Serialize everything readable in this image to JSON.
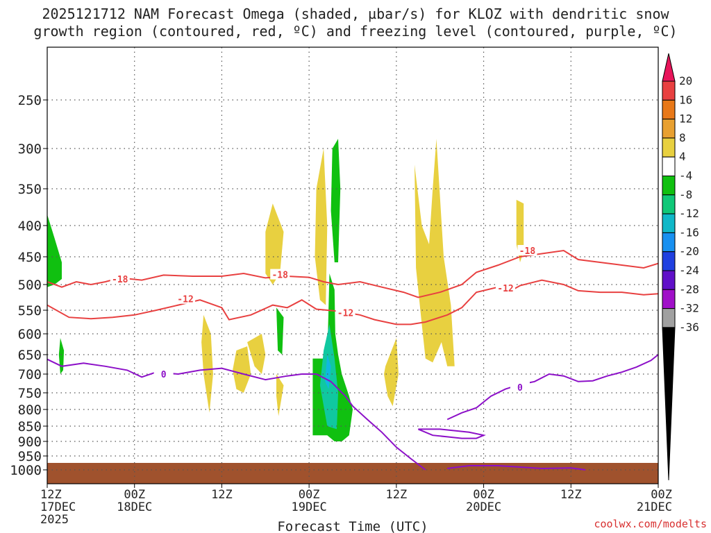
{
  "chart_data": {
    "type": "time-height cross-section",
    "title_line1": "2025121712 NAM Forecast Omega (shaded, µbar/s) for KLOZ with dendritic snow",
    "title_line2": "growth region (contoured, red, ºC) and freezing level (contoured, purple, ºC)",
    "xlabel": "Forecast Time (UTC)",
    "x_ticks": [
      {
        "hour": 0,
        "label1": "12Z",
        "label2": "17DEC",
        "label3": "2025"
      },
      {
        "hour": 12,
        "label1": "00Z",
        "label2": "18DEC"
      },
      {
        "hour": 24,
        "label1": "12Z"
      },
      {
        "hour": 36,
        "label1": "00Z",
        "label2": "19DEC"
      },
      {
        "hour": 48,
        "label1": "12Z"
      },
      {
        "hour": 60,
        "label1": "00Z",
        "label2": "20DEC"
      },
      {
        "hour": 72,
        "label1": "12Z"
      },
      {
        "hour": 84,
        "label1": "00Z",
        "label2": "21DEC"
      }
    ],
    "y_ticks_hpa": [
      250,
      300,
      350,
      400,
      450,
      500,
      550,
      600,
      650,
      700,
      750,
      800,
      850,
      900,
      950,
      1000
    ],
    "x_range_hours": [
      0,
      84
    ],
    "y_range_hpa": [
      200,
      1040
    ],
    "colorbar": {
      "labels": [
        "20",
        "16",
        "12",
        "8",
        "4",
        "-4",
        "-8",
        "-12",
        "-16",
        "-20",
        "-24",
        "-28",
        "-32",
        "-36"
      ],
      "colors": [
        "#e8145a",
        "#e84040",
        "#e87818",
        "#e8a030",
        "#e8d040",
        "#ffffff",
        "#10c010",
        "#10c878",
        "#10b8c8",
        "#1890f0",
        "#2040e0",
        "#6010c8",
        "#a010c8",
        "#a0a0a0",
        "#000000"
      ]
    },
    "contours": [
      {
        "name": "-18 C isotherm",
        "color": "#e84040",
        "label": "-18",
        "points": [
          [
            0,
            495
          ],
          [
            2,
            505
          ],
          [
            4,
            495
          ],
          [
            6,
            500
          ],
          [
            8,
            495
          ],
          [
            10,
            488
          ],
          [
            13,
            492
          ],
          [
            16,
            483
          ],
          [
            20,
            485
          ],
          [
            24,
            485
          ],
          [
            27,
            480
          ],
          [
            30,
            488
          ],
          [
            33,
            485
          ],
          [
            36,
            487
          ],
          [
            38,
            495
          ],
          [
            40,
            500
          ],
          [
            43,
            495
          ],
          [
            46,
            505
          ],
          [
            49,
            515
          ],
          [
            51,
            525
          ],
          [
            54,
            515
          ],
          [
            57,
            500
          ],
          [
            59,
            478
          ],
          [
            62,
            465
          ],
          [
            65,
            450
          ],
          [
            68,
            445
          ],
          [
            71,
            440
          ],
          [
            73,
            455
          ],
          [
            76,
            460
          ],
          [
            79,
            465
          ],
          [
            82,
            470
          ],
          [
            84,
            462
          ]
        ],
        "label_positions": [
          [
            10,
            490
          ],
          [
            32,
            482
          ],
          [
            66,
            440
          ]
        ]
      },
      {
        "name": "-12 C isotherm",
        "color": "#e84040",
        "label": "-12",
        "points": [
          [
            0,
            540
          ],
          [
            3,
            565
          ],
          [
            6,
            568
          ],
          [
            9,
            565
          ],
          [
            12,
            560
          ],
          [
            15,
            550
          ],
          [
            18,
            540
          ],
          [
            21,
            530
          ],
          [
            24,
            545
          ],
          [
            25,
            570
          ],
          [
            28,
            560
          ],
          [
            31,
            540
          ],
          [
            33,
            545
          ],
          [
            35,
            530
          ],
          [
            37,
            548
          ],
          [
            40,
            552
          ],
          [
            43,
            560
          ],
          [
            45,
            570
          ],
          [
            48,
            580
          ],
          [
            50,
            580
          ],
          [
            52,
            575
          ],
          [
            55,
            560
          ],
          [
            57,
            545
          ],
          [
            59,
            515
          ],
          [
            62,
            505
          ],
          [
            64,
            510
          ],
          [
            65,
            502
          ],
          [
            68,
            492
          ],
          [
            71,
            500
          ],
          [
            73,
            512
          ],
          [
            76,
            515
          ],
          [
            79,
            515
          ],
          [
            82,
            520
          ],
          [
            84,
            518
          ]
        ],
        "label_positions": [
          [
            19,
            528
          ],
          [
            41,
            555
          ],
          [
            63,
            507
          ]
        ]
      },
      {
        "name": "0 C freezing level",
        "color": "#8c10c8",
        "label": "0",
        "points": [
          [
            0,
            662
          ],
          [
            2,
            680
          ],
          [
            5,
            672
          ],
          [
            8,
            680
          ],
          [
            11,
            690
          ],
          [
            13,
            708
          ],
          [
            15,
            695
          ],
          [
            18,
            700
          ],
          [
            21,
            690
          ],
          [
            24,
            685
          ],
          [
            27,
            700
          ],
          [
            30,
            715
          ],
          [
            33,
            705
          ],
          [
            35,
            700
          ],
          [
            37,
            700
          ],
          [
            39,
            720
          ],
          [
            41,
            760
          ],
          [
            42,
            790
          ],
          [
            44,
            830
          ],
          [
            46,
            870
          ],
          [
            48,
            920
          ],
          [
            50,
            960
          ],
          [
            52,
            1000
          ]
        ],
        "label_positions": [
          [
            16,
            700
          ]
        ]
      },
      {
        "name": "0 C freezing level (right segment)",
        "color": "#8c10c8",
        "label": "0",
        "points": [
          [
            55,
            830
          ],
          [
            57,
            810
          ],
          [
            59,
            795
          ],
          [
            61,
            760
          ],
          [
            63,
            740
          ],
          [
            65,
            728
          ],
          [
            67,
            720
          ],
          [
            69,
            700
          ],
          [
            71,
            705
          ],
          [
            73,
            720
          ],
          [
            75,
            718
          ],
          [
            77,
            705
          ],
          [
            79,
            695
          ],
          [
            81,
            682
          ],
          [
            83,
            665
          ],
          [
            84,
            650
          ]
        ],
        "label_positions": [
          [
            65,
            735
          ]
        ]
      },
      {
        "name": "0 C lower loop",
        "color": "#8c10c8",
        "points": [
          [
            51,
            860
          ],
          [
            53,
            880
          ],
          [
            55,
            885
          ],
          [
            57,
            890
          ],
          [
            59,
            890
          ],
          [
            60,
            880
          ],
          [
            58,
            870
          ],
          [
            54,
            860
          ],
          [
            51,
            860
          ]
        ],
        "label_positions": [
          [
            54,
            885
          ]
        ]
      },
      {
        "name": "0 C surface segment",
        "color": "#8c10c8",
        "points": [
          [
            55,
            995
          ],
          [
            58,
            985
          ],
          [
            62,
            985
          ],
          [
            65,
            990
          ],
          [
            68,
            995
          ],
          [
            72,
            993
          ],
          [
            74,
            1000
          ]
        ],
        "label_positions": []
      }
    ],
    "shaded_regions": [
      {
        "color": "#10c010",
        "points": [
          [
            0,
            385
          ],
          [
            1,
            420
          ],
          [
            2,
            460
          ],
          [
            2,
            490
          ],
          [
            1,
            500
          ],
          [
            0,
            505
          ]
        ]
      },
      {
        "color": "#10c010",
        "points": [
          [
            1.8,
            610
          ],
          [
            2.3,
            640
          ],
          [
            2.2,
            690
          ],
          [
            1.8,
            700
          ],
          [
            1.6,
            650
          ]
        ]
      },
      {
        "color": "#e8d040",
        "points": [
          [
            21.5,
            560
          ],
          [
            22.5,
            600
          ],
          [
            22.8,
            700
          ],
          [
            22.3,
            810
          ],
          [
            21.5,
            700
          ],
          [
            21.2,
            620
          ]
        ]
      },
      {
        "color": "#e8d040",
        "points": [
          [
            26,
            640
          ],
          [
            27.5,
            630
          ],
          [
            28,
            700
          ],
          [
            27,
            750
          ],
          [
            26,
            740
          ],
          [
            25.5,
            690
          ]
        ]
      },
      {
        "color": "#e8d040",
        "points": [
          [
            27.5,
            620
          ],
          [
            29.5,
            600
          ],
          [
            30,
            650
          ],
          [
            29.5,
            700
          ],
          [
            28.5,
            680
          ]
        ]
      },
      {
        "color": "#e8d040",
        "points": [
          [
            30,
            410
          ],
          [
            31,
            370
          ],
          [
            32.5,
            410
          ],
          [
            32,
            480
          ],
          [
            31,
            500
          ],
          [
            30,
            480
          ]
        ]
      },
      {
        "color": "#10c010",
        "points": [
          [
            31.5,
            545
          ],
          [
            32.5,
            565
          ],
          [
            32.3,
            650
          ],
          [
            31.7,
            640
          ]
        ]
      },
      {
        "color": "#e8d040",
        "points": [
          [
            31.5,
            700
          ],
          [
            32.5,
            730
          ],
          [
            31.8,
            820
          ],
          [
            31.5,
            760
          ]
        ]
      },
      {
        "color": "#e8d040",
        "points": [
          [
            37,
            350
          ],
          [
            38,
            300
          ],
          [
            38.5,
            400
          ],
          [
            38.3,
            540
          ],
          [
            37.5,
            530
          ],
          [
            36.8,
            450
          ]
        ]
      },
      {
        "color": "#10c010",
        "points": [
          [
            39.2,
            300
          ],
          [
            40,
            290
          ],
          [
            40.3,
            350
          ],
          [
            40,
            460
          ],
          [
            39.5,
            460
          ],
          [
            39,
            380
          ]
        ]
      },
      {
        "color": "#10c010",
        "points": [
          [
            38.8,
            480
          ],
          [
            39.5,
            510
          ],
          [
            39.6,
            600
          ],
          [
            40,
            650
          ],
          [
            40.5,
            700
          ],
          [
            41.5,
            760
          ],
          [
            42,
            800
          ],
          [
            41.5,
            880
          ],
          [
            40.5,
            900
          ],
          [
            39.5,
            900
          ],
          [
            38.5,
            880
          ],
          [
            36.5,
            880
          ],
          [
            36.5,
            660
          ],
          [
            38.5,
            660
          ]
        ]
      },
      {
        "color": "#10c8a0",
        "points": [
          [
            38.8,
            580
          ],
          [
            39.5,
            660
          ],
          [
            40,
            750
          ],
          [
            39.8,
            860
          ],
          [
            38.5,
            850
          ],
          [
            37.5,
            730
          ],
          [
            38,
            640
          ]
        ]
      },
      {
        "color": "#10b8e0",
        "points": [
          [
            38.5,
            650
          ],
          [
            39,
            680
          ],
          [
            38.7,
            740
          ],
          [
            38.2,
            720
          ]
        ]
      },
      {
        "color": "#e8d040",
        "points": [
          [
            46.5,
            680
          ],
          [
            48,
            610
          ],
          [
            48.3,
            700
          ],
          [
            47.5,
            790
          ],
          [
            46.8,
            760
          ],
          [
            46.3,
            700
          ]
        ]
      },
      {
        "color": "#e8d040",
        "points": [
          [
            50.5,
            320
          ],
          [
            51.5,
            400
          ],
          [
            52.5,
            430
          ],
          [
            53,
            350
          ],
          [
            53.5,
            290
          ],
          [
            54.5,
            450
          ],
          [
            55.5,
            540
          ],
          [
            56,
            680
          ],
          [
            55,
            680
          ],
          [
            54.2,
            620
          ],
          [
            53,
            670
          ],
          [
            52,
            660
          ],
          [
            51.5,
            580
          ],
          [
            50.7,
            470
          ]
        ]
      },
      {
        "color": "#e8d040",
        "points": [
          [
            64.5,
            365
          ],
          [
            65.5,
            370
          ],
          [
            65.5,
            440
          ],
          [
            65,
            460
          ],
          [
            64.5,
            430
          ]
        ]
      }
    ],
    "surface_terrain": {
      "color": "#a0522d",
      "top_hpa": 975,
      "bottom_hpa": 1040
    }
  },
  "credit": "coolwx.com/modelts"
}
